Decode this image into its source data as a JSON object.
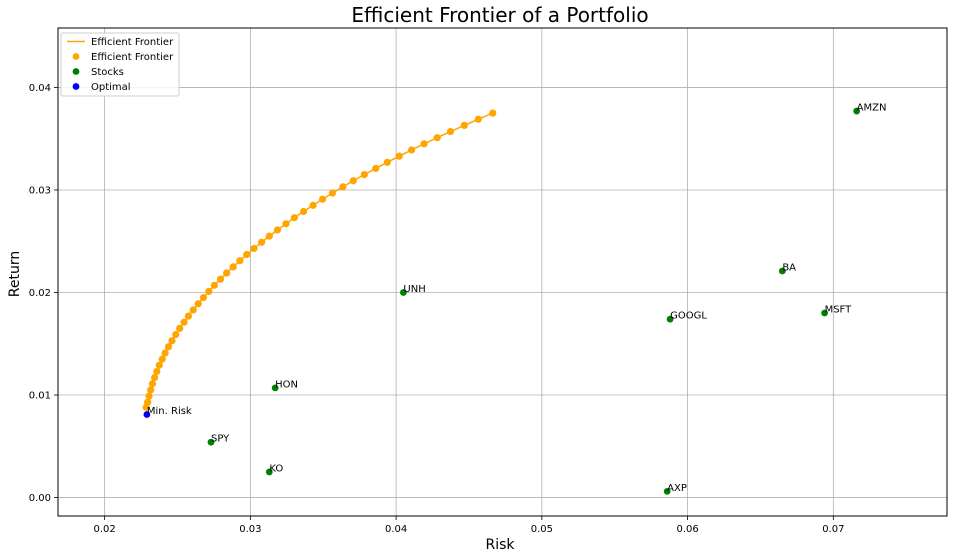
{
  "chart_data": {
    "type": "scatter",
    "title": "Efficient Frontier of a Portfolio",
    "xlabel": "Risk",
    "ylabel": "Return",
    "xlim": [
      0.0168,
      0.0778
    ],
    "ylim": [
      -0.0018,
      0.0458
    ],
    "xticks": [
      0.02,
      0.03,
      0.04,
      0.05,
      0.06,
      0.07
    ],
    "yticks": [
      0.0,
      0.01,
      0.02,
      0.03,
      0.04
    ],
    "xtick_labels": [
      "0.02",
      "0.03",
      "0.04",
      "0.05",
      "0.06",
      "0.07"
    ],
    "ytick_labels": [
      "0.00",
      "0.01",
      "0.02",
      "0.03",
      "0.04"
    ],
    "grid": true,
    "legend_position": "top-left",
    "colors": {
      "frontier": "#FFA500",
      "stocks": "#008000",
      "optimal": "#0000FF",
      "grid": "#b0b0b0"
    },
    "legend": [
      {
        "label": "Efficient Frontier",
        "kind": "line",
        "color": "#FFA500"
      },
      {
        "label": "Efficient Frontier",
        "kind": "marker",
        "color": "#FFA500"
      },
      {
        "label": "Stocks",
        "kind": "marker",
        "color": "#008000"
      },
      {
        "label": "Optimal",
        "kind": "marker",
        "color": "#0000FF"
      }
    ],
    "series": [
      {
        "name": "Efficient Frontier",
        "color": "#FFA500",
        "points": [
          [
            0.02285,
            0.0088
          ],
          [
            0.02295,
            0.0093
          ],
          [
            0.02305,
            0.0099
          ],
          [
            0.02316,
            0.0105
          ],
          [
            0.02328,
            0.0111
          ],
          [
            0.02343,
            0.0117
          ],
          [
            0.02358,
            0.0123
          ],
          [
            0.02375,
            0.0129
          ],
          [
            0.02395,
            0.0135
          ],
          [
            0.02415,
            0.0141
          ],
          [
            0.02438,
            0.0147
          ],
          [
            0.02462,
            0.0153
          ],
          [
            0.02488,
            0.0159
          ],
          [
            0.02515,
            0.0165
          ],
          [
            0.02545,
            0.0171
          ],
          [
            0.02575,
            0.0177
          ],
          [
            0.02608,
            0.0183
          ],
          [
            0.02642,
            0.0189
          ],
          [
            0.02678,
            0.0195
          ],
          [
            0.02715,
            0.0201
          ],
          [
            0.02753,
            0.0207
          ],
          [
            0.02795,
            0.0213
          ],
          [
            0.02837,
            0.0219
          ],
          [
            0.02882,
            0.0225
          ],
          [
            0.02928,
            0.0231
          ],
          [
            0.02975,
            0.0237
          ],
          [
            0.03025,
            0.0243
          ],
          [
            0.03077,
            0.0249
          ],
          [
            0.0313,
            0.0255
          ],
          [
            0.03186,
            0.0261
          ],
          [
            0.03244,
            0.0267
          ],
          [
            0.03302,
            0.0273
          ],
          [
            0.03365,
            0.0279
          ],
          [
            0.0343,
            0.0285
          ],
          [
            0.03495,
            0.0291
          ],
          [
            0.03563,
            0.0297
          ],
          [
            0.03635,
            0.0303
          ],
          [
            0.03706,
            0.0309
          ],
          [
            0.03782,
            0.0315
          ],
          [
            0.0386,
            0.0321
          ],
          [
            0.0394,
            0.0327
          ],
          [
            0.04021,
            0.0333
          ],
          [
            0.04106,
            0.0339
          ],
          [
            0.04192,
            0.0345
          ],
          [
            0.04282,
            0.0351
          ],
          [
            0.04373,
            0.0357
          ],
          [
            0.04468,
            0.0363
          ],
          [
            0.04564,
            0.0369
          ],
          [
            0.04663,
            0.0375
          ]
        ]
      },
      {
        "name": "Stocks",
        "color": "#008000",
        "points": [
          {
            "label": "AMZN",
            "x": 0.0716,
            "y": 0.0377
          },
          {
            "label": "BA",
            "x": 0.0665,
            "y": 0.0221
          },
          {
            "label": "UNH",
            "x": 0.0405,
            "y": 0.02
          },
          {
            "label": "MSFT",
            "x": 0.0694,
            "y": 0.018
          },
          {
            "label": "GOOGL",
            "x": 0.0588,
            "y": 0.0174
          },
          {
            "label": "HON",
            "x": 0.0317,
            "y": 0.0107
          },
          {
            "label": "SPY",
            "x": 0.0273,
            "y": 0.0054
          },
          {
            "label": "KO",
            "x": 0.0313,
            "y": 0.0025
          },
          {
            "label": "AXP",
            "x": 0.0586,
            "y": 0.0006
          }
        ]
      },
      {
        "name": "Optimal",
        "color": "#0000FF",
        "points": [
          {
            "label": "Min. Risk",
            "x": 0.0229,
            "y": 0.0081
          }
        ]
      }
    ]
  }
}
